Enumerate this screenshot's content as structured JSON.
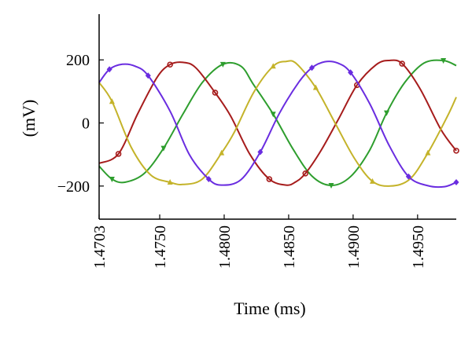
{
  "chart_data": {
    "type": "line",
    "title": "",
    "xlabel": "Time (ms)",
    "ylabel": "(mV)",
    "xlim": [
      1.4703,
      1.498
    ],
    "ylim": [
      -305,
      345
    ],
    "grid": false,
    "x_ticks": [
      {
        "value": 1.4703,
        "label": "1.4703"
      },
      {
        "value": 1.475,
        "label": "1.4750"
      },
      {
        "value": 1.48,
        "label": "1.4800"
      },
      {
        "value": 1.485,
        "label": "1.4850"
      },
      {
        "value": 1.49,
        "label": "1.4900"
      },
      {
        "value": 1.495,
        "label": "1.4950"
      }
    ],
    "y_ticks": [
      {
        "value": 200,
        "label": "200"
      },
      {
        "value": 0,
        "label": "0"
      },
      {
        "value": -200,
        "label": "−200"
      }
    ],
    "series": [
      {
        "color": "#2e9e2e",
        "marker": "triangle-down",
        "x": [
          1.4703,
          1.4713,
          1.4723,
          1.4738,
          1.4753,
          1.4768,
          1.4783,
          1.4799,
          1.4813,
          1.4823,
          1.4838,
          1.4853,
          1.4868,
          1.4883,
          1.4898,
          1.4913,
          1.4926,
          1.494,
          1.4955,
          1.497,
          1.498
        ],
        "y": [
          -137,
          -178,
          -188,
          -160,
          -80,
          28,
          128,
          186,
          180,
          120,
          28,
          -80,
          -168,
          -198,
          -170,
          -85,
          32,
          128,
          190,
          198,
          182
        ]
      },
      {
        "color": "#a61c1c",
        "marker": "circle-open",
        "x": [
          1.4703,
          1.4718,
          1.4733,
          1.4748,
          1.4758,
          1.4768,
          1.4778,
          1.4793,
          1.4805,
          1.482,
          1.4835,
          1.4848,
          1.4855,
          1.4863,
          1.4875,
          1.4889,
          1.4903,
          1.4918,
          1.4928,
          1.4938,
          1.4952,
          1.4968,
          1.498
        ],
        "y": [
          -128,
          -98,
          30,
          145,
          185,
          192,
          175,
          96,
          22,
          -100,
          -178,
          -197,
          -188,
          -160,
          -88,
          15,
          120,
          185,
          198,
          188,
          108,
          -20,
          -88
        ]
      },
      {
        "color": "#c4b32a",
        "marker": "triangle-up",
        "x": [
          1.4703,
          1.4713,
          1.4728,
          1.4743,
          1.4758,
          1.4768,
          1.4783,
          1.4798,
          1.4808,
          1.4823,
          1.4838,
          1.4848,
          1.4856,
          1.4871,
          1.4886,
          1.4901,
          1.4915,
          1.4929,
          1.4944,
          1.4958,
          1.4973,
          1.498
        ],
        "y": [
          128,
          68,
          -78,
          -165,
          -188,
          -195,
          -178,
          -95,
          -28,
          98,
          180,
          195,
          188,
          112,
          0,
          -112,
          -185,
          -200,
          -178,
          -95,
          20,
          82
        ]
      },
      {
        "color": "#6a2de0",
        "marker": "diamond",
        "x": [
          1.4703,
          1.4711,
          1.4721,
          1.4731,
          1.4741,
          1.4758,
          1.4773,
          1.4788,
          1.4798,
          1.4813,
          1.4828,
          1.4843,
          1.4858,
          1.4868,
          1.4878,
          1.4888,
          1.4898,
          1.4913,
          1.4928,
          1.4943,
          1.4958,
          1.4971,
          1.498
        ],
        "y": [
          128,
          170,
          186,
          180,
          150,
          38,
          -100,
          -178,
          -197,
          -180,
          -92,
          32,
          130,
          175,
          194,
          190,
          160,
          60,
          -72,
          -170,
          -199,
          -202,
          -188
        ]
      }
    ]
  }
}
